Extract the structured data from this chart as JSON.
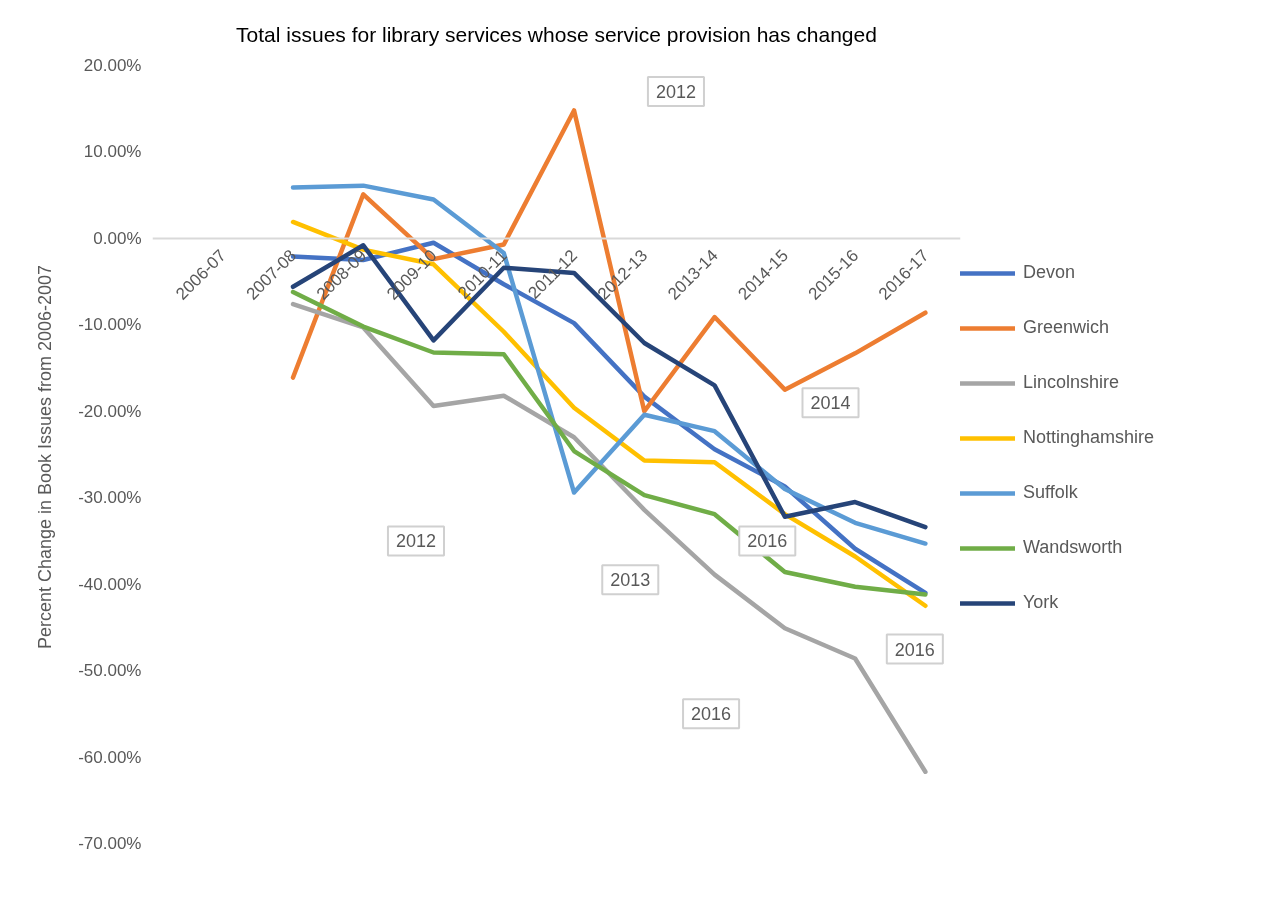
{
  "chart_data": {
    "type": "line",
    "title": "Total issues for library services whose service provision has changed",
    "ylabel": "Percent Change in Book Issues  from 2006-2007",
    "categories": [
      "2006-07",
      "2007-08",
      "2008-09",
      "2009-10",
      "2010-11",
      "2011-12",
      "2012-13",
      "2013-14",
      "2014-15",
      "2015-16",
      "2016-17"
    ],
    "series": [
      {
        "name": "Devon",
        "color": "#4472c4",
        "values": [
          null,
          -2.1,
          -2.5,
          -0.5,
          -5.3,
          -9.8,
          -18.3,
          -24.4,
          -28.7,
          -35.9,
          -41.0
        ]
      },
      {
        "name": "Greenwich",
        "color": "#ed7d31",
        "values": [
          null,
          -16.1,
          5.1,
          -2.4,
          -0.7,
          14.8,
          -20.0,
          -9.1,
          -17.5,
          -13.3,
          -8.6
        ]
      },
      {
        "name": "Lincolnshire",
        "color": "#a5a5a5",
        "values": [
          null,
          -7.6,
          -10.3,
          -19.4,
          -18.2,
          -23.0,
          -31.4,
          -38.9,
          -45.1,
          -48.6,
          -61.7
        ]
      },
      {
        "name": "Nottinghamshire",
        "color": "#ffc000",
        "values": [
          null,
          1.9,
          -1.3,
          -3.0,
          -10.8,
          -19.6,
          -25.7,
          -25.9,
          -31.9,
          -36.8,
          -42.5
        ]
      },
      {
        "name": "Suffolk",
        "color": "#5b9bd5",
        "values": [
          null,
          5.9,
          6.1,
          4.5,
          -1.7,
          -29.4,
          -20.4,
          -22.3,
          -29.0,
          -32.9,
          -35.3
        ]
      },
      {
        "name": "Wandsworth",
        "color": "#70ad47",
        "values": [
          null,
          -6.2,
          -10.2,
          -13.2,
          -13.4,
          -24.6,
          -29.7,
          -31.9,
          -38.6,
          -40.3,
          -41.2
        ]
      },
      {
        "name": "York",
        "color": "#264478",
        "values": [
          null,
          -5.6,
          -0.8,
          -11.8,
          -3.4,
          -4.0,
          -12.1,
          -17.0,
          -32.2,
          -30.5,
          -33.4
        ]
      }
    ],
    "ylim": [
      -70,
      20
    ],
    "yticks": [
      {
        "value": 20,
        "label": "20.00%"
      },
      {
        "value": 10,
        "label": "10.00%"
      },
      {
        "value": 0,
        "label": "0.00%"
      },
      {
        "value": -10,
        "label": "-10.00%"
      },
      {
        "value": -20,
        "label": "-20.00%"
      },
      {
        "value": -30,
        "label": "-30.00%"
      },
      {
        "value": -40,
        "label": "-40.00%"
      },
      {
        "value": -50,
        "label": "-50.00%"
      },
      {
        "value": -60,
        "label": "-60.00%"
      },
      {
        "value": -70,
        "label": "-70.00%"
      }
    ],
    "annotations": [
      "2012",
      "2012",
      "2013",
      "2014",
      "2016",
      "2016",
      "2016"
    ],
    "legend": "right",
    "grid": false,
    "marker": "none",
    "line_style": "solid"
  }
}
